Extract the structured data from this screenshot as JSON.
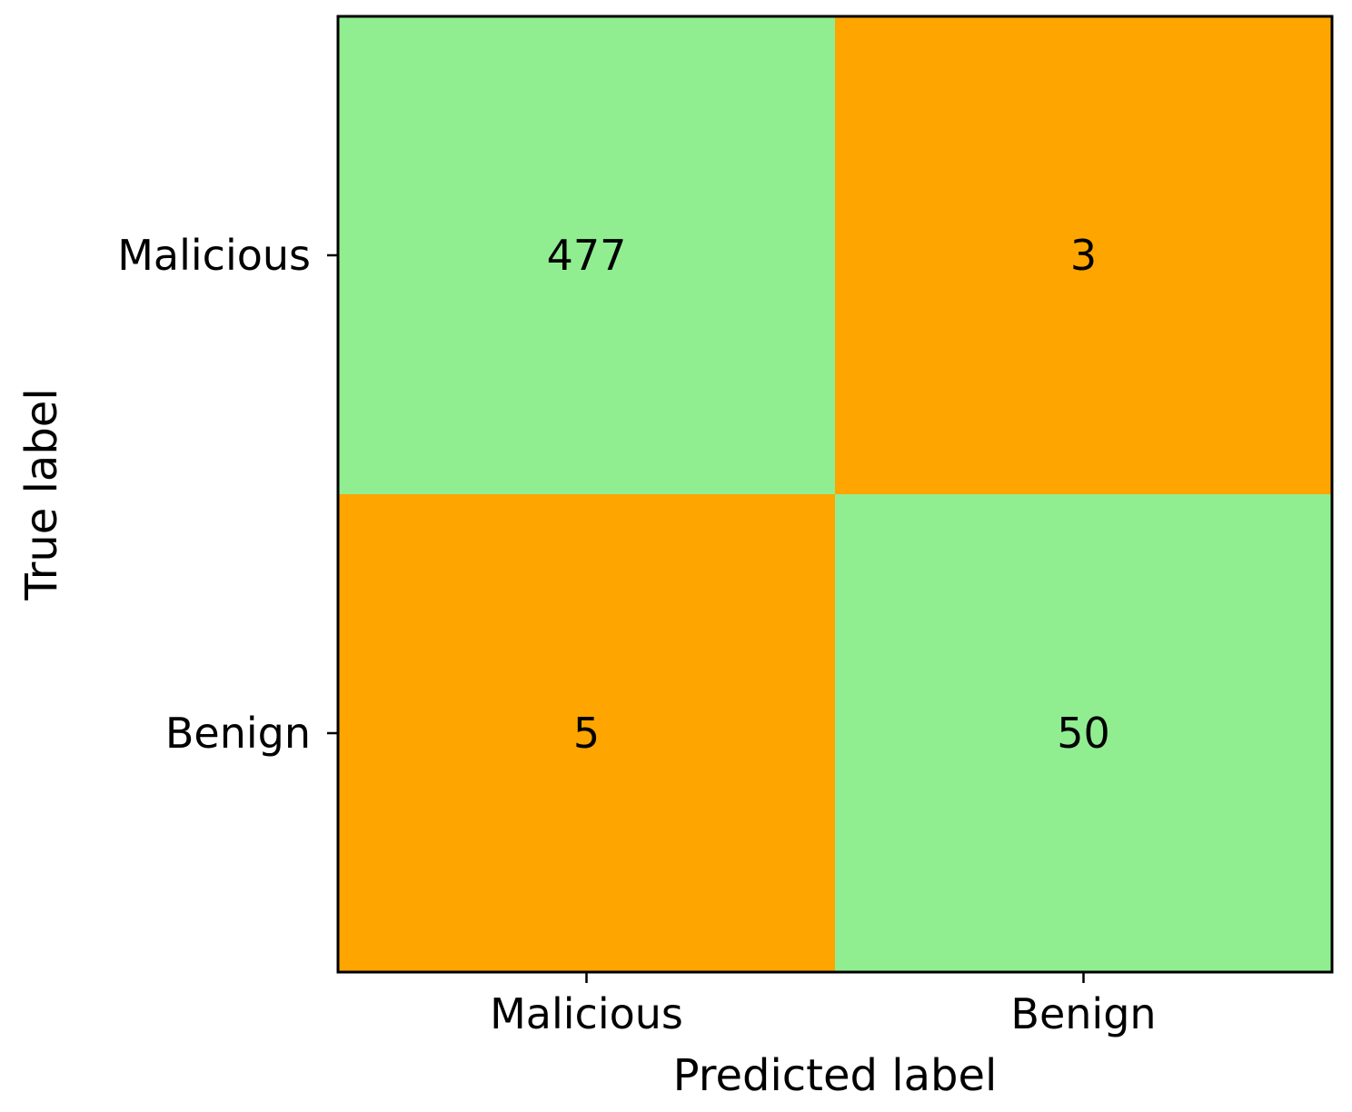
{
  "chart_data": {
    "type": "heatmap",
    "title": "",
    "xlabel": "Predicted label",
    "ylabel": "True label",
    "x_categories": [
      "Malicious",
      "Benign"
    ],
    "y_categories": [
      "Malicious",
      "Benign"
    ],
    "values": [
      [
        477,
        3
      ],
      [
        5,
        50
      ]
    ],
    "value_labels": [
      [
        "477",
        "3"
      ],
      [
        "5",
        "50"
      ]
    ],
    "colors": {
      "correct": "#90EE90",
      "incorrect": "#FFA500",
      "frame": "#000000"
    },
    "grid": false,
    "legend": "none"
  }
}
